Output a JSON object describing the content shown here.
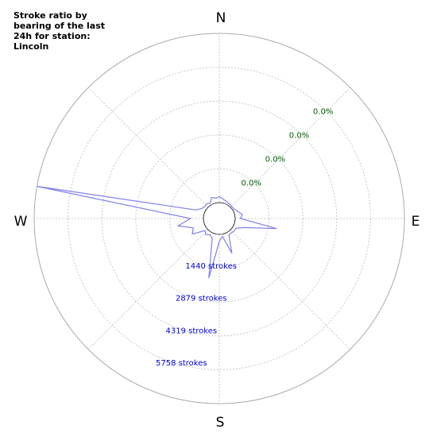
{
  "chart_data": {
    "type": "polar-area",
    "title": "Stroke ratio by bearing of the last 24h for station: Lincoln",
    "cardinals": [
      "N",
      "E",
      "S",
      "W"
    ],
    "ratio_ring_labels": [
      "0.0%",
      "0.0%",
      "0.0%",
      "0.0%"
    ],
    "stroke_ring_labels": [
      "1440 strokes",
      "2879 strokes",
      "4319 strokes",
      "5758 strokes"
    ],
    "radial_max_strokes": 7198,
    "grid": true,
    "colors": {
      "series_stroke": "#8080f0",
      "ratio_labels": "#006400",
      "stroke_labels": "#0000dd",
      "grid": "#bbbbbb"
    },
    "series": [
      {
        "bearing_deg": [
          0,
          10,
          20,
          30,
          40,
          50,
          60,
          70,
          80,
          90,
          100,
          110,
          120,
          130,
          140,
          150,
          160,
          170,
          180,
          190,
          200,
          210,
          220,
          230,
          240,
          250,
          260,
          270,
          280,
          290,
          300,
          310,
          320,
          330,
          340,
          350
        ],
        "strokes": [
          250,
          180,
          120,
          80,
          80,
          60,
          80,
          180,
          320,
          220,
          1800,
          450,
          150,
          150,
          120,
          140,
          900,
          100,
          300,
          1900,
          200,
          120,
          220,
          120,
          650,
          500,
          1100,
          550,
          7300,
          380,
          180,
          120,
          150,
          80,
          280,
          200
        ]
      }
    ]
  }
}
